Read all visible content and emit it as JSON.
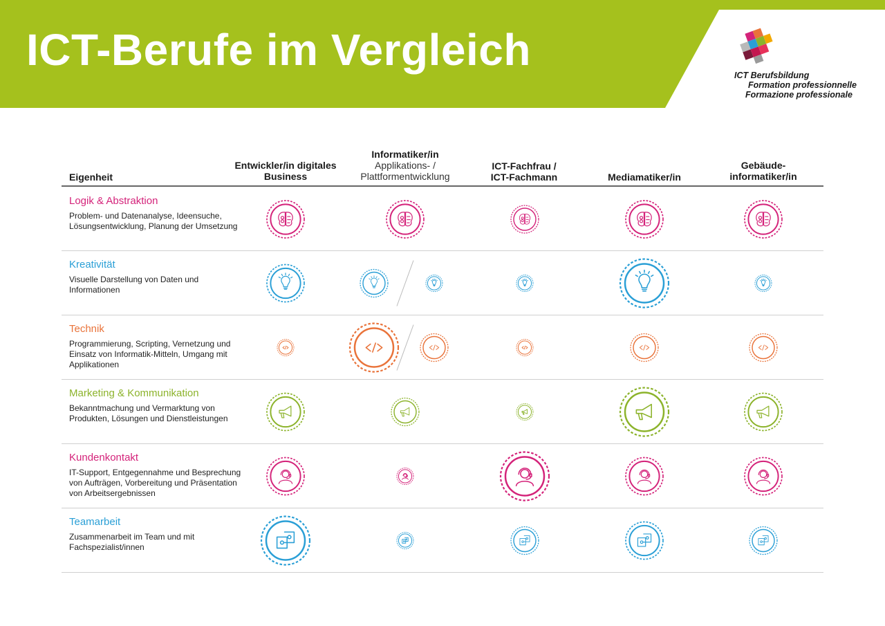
{
  "header": {
    "title": "ICT-Berufe im Vergleich",
    "colors": {
      "banner": "#a5c11d"
    }
  },
  "logo": {
    "lines": [
      "ICT Berufsbildung",
      "Formation professionnelle",
      "Formazione professionale"
    ]
  },
  "table": {
    "property_header": "Eigenheit",
    "columns": [
      {
        "title": "Entwickler/in digitales Business",
        "subtitle": ""
      },
      {
        "title": "Informatiker/in",
        "subtitle": "Applikations- / Plattformentwicklung"
      },
      {
        "title": "ICT-Fachfrau / ICT-Fachmann",
        "subtitle": ""
      },
      {
        "title": "Mediamatiker/in",
        "subtitle": ""
      },
      {
        "title": "Gebäude-informatiker/in",
        "subtitle": ""
      }
    ],
    "rows": [
      {
        "name": "Logik & Abstraktion",
        "description": "Problem- und Datenanalyse, Ideensuche, Lösungsentwicklung, Planung der Umsetzung",
        "color": "#d4237a",
        "icon": "brain-icon",
        "levels": [
          [
            3
          ],
          [
            3
          ],
          [
            2
          ],
          [
            3
          ],
          [
            3
          ]
        ]
      },
      {
        "name": "Kreativität",
        "description": "Visuelle Darstellung von Daten und Informationen",
        "color": "#2a9fd6",
        "icon": "lightbulb-icon",
        "levels": [
          [
            3
          ],
          [
            2,
            1
          ],
          [
            1
          ],
          [
            4
          ],
          [
            1
          ]
        ]
      },
      {
        "name": "Technik",
        "description": "Programmierung, Scripting, Vernetzung und Einsatz von Informatik-Mitteln, Umgang mit Applikationen",
        "color": "#e9733a",
        "icon": "code-icon",
        "levels": [
          [
            1
          ],
          [
            4,
            2
          ],
          [
            1
          ],
          [
            2
          ],
          [
            2
          ]
        ]
      },
      {
        "name": "Marketing & Kommunikation",
        "description": "Bekanntmachung und Vermarktung von Produkten, Lösungen und Dienstleistungen",
        "color": "#8cb32b",
        "icon": "megaphone-icon",
        "levels": [
          [
            3
          ],
          [
            2
          ],
          [
            1
          ],
          [
            4
          ],
          [
            3
          ]
        ]
      },
      {
        "name": "Kundenkontakt",
        "description": "IT-Support, Entgegennahme und Besprechung von Aufträgen, Vorbereitung und Präsentation von Arbeitsergebnissen",
        "color": "#d4237a",
        "icon": "headset-icon",
        "levels": [
          [
            3
          ],
          [
            1
          ],
          [
            4
          ],
          [
            3
          ],
          [
            3
          ]
        ]
      },
      {
        "name": "Teamarbeit",
        "description": "Zusammenarbeit im Team und mit Fachspezialist/innen",
        "color": "#2a9fd6",
        "icon": "puzzle-icon",
        "levels": [
          [
            4
          ],
          [
            1
          ],
          [
            2
          ],
          [
            3
          ],
          [
            2
          ]
        ]
      }
    ]
  }
}
